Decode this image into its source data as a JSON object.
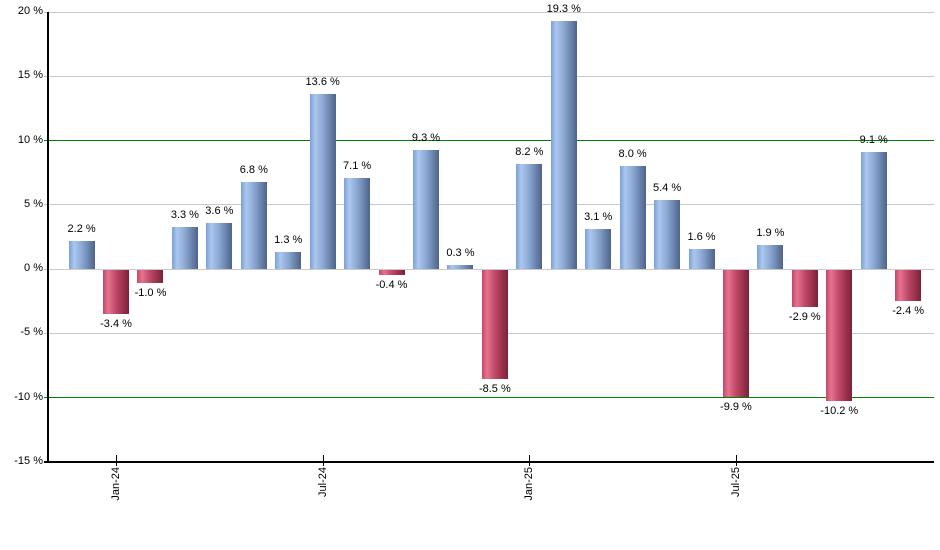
{
  "chart_data": {
    "type": "bar",
    "title": "",
    "description": "Monthly percentage returns bar chart: blue bars positive, red bars negative, green reference lines at +10% and -10%",
    "y_axis": {
      "min": -15,
      "max": 20,
      "step": 5,
      "tick_labels": [
        "20 %",
        "15 %",
        "10 %",
        "5 %",
        "0 %",
        "-5 %",
        "-10 %",
        "-15 %"
      ],
      "reference_lines": [
        10,
        -10
      ],
      "grid": true
    },
    "x_axis": {
      "ticks": [
        {
          "bar_index": 1,
          "label": "Jan-24"
        },
        {
          "bar_index": 7,
          "label": "Jul-24"
        },
        {
          "bar_index": 13,
          "label": "Jan-25"
        },
        {
          "bar_index": 19,
          "label": "Jul-25"
        }
      ]
    },
    "bars": [
      {
        "value": 2.2,
        "label": "2.2 %"
      },
      {
        "value": -3.4,
        "label": "-3.4 %"
      },
      {
        "value": -1.0,
        "label": "-1.0 %"
      },
      {
        "value": 3.3,
        "label": "3.3 %"
      },
      {
        "value": 3.6,
        "label": "3.6 %"
      },
      {
        "value": 6.8,
        "label": "6.8 %"
      },
      {
        "value": 1.3,
        "label": "1.3 %"
      },
      {
        "value": 13.6,
        "label": "13.6 %"
      },
      {
        "value": 7.1,
        "label": "7.1 %"
      },
      {
        "value": -0.4,
        "label": "-0.4 %"
      },
      {
        "value": 9.3,
        "label": "9.3 %"
      },
      {
        "value": 0.3,
        "label": "0.3 %"
      },
      {
        "value": -8.5,
        "label": "-8.5 %"
      },
      {
        "value": 8.2,
        "label": "8.2 %"
      },
      {
        "value": 19.3,
        "label": "19.3 %"
      },
      {
        "value": 3.1,
        "label": "3.1 %"
      },
      {
        "value": 8.0,
        "label": "8.0 %"
      },
      {
        "value": 5.4,
        "label": "5.4 %"
      },
      {
        "value": 1.6,
        "label": "1.6 %"
      },
      {
        "value": -9.9,
        "label": "-9.9 %"
      },
      {
        "value": 1.9,
        "label": "1.9 %"
      },
      {
        "value": -2.9,
        "label": "-2.9 %"
      },
      {
        "value": -10.2,
        "label": "-10.2 %"
      },
      {
        "value": 9.1,
        "label": "9.1 %"
      },
      {
        "value": -2.4,
        "label": "-2.4 %"
      }
    ],
    "legend": null,
    "colors": {
      "positive_bar_gradient": [
        "#7ba0d8",
        "#abc7ee",
        "#8ba8d3",
        "#4e6389"
      ],
      "negative_bar_gradient": [
        "#c64767",
        "#e5738f",
        "#bf4868",
        "#7b2138"
      ],
      "reference_line": "#008000",
      "grid_line": "#c9c9c9",
      "axis_line": "#000000",
      "text": "#000000",
      "background": "#ffffff"
    }
  }
}
